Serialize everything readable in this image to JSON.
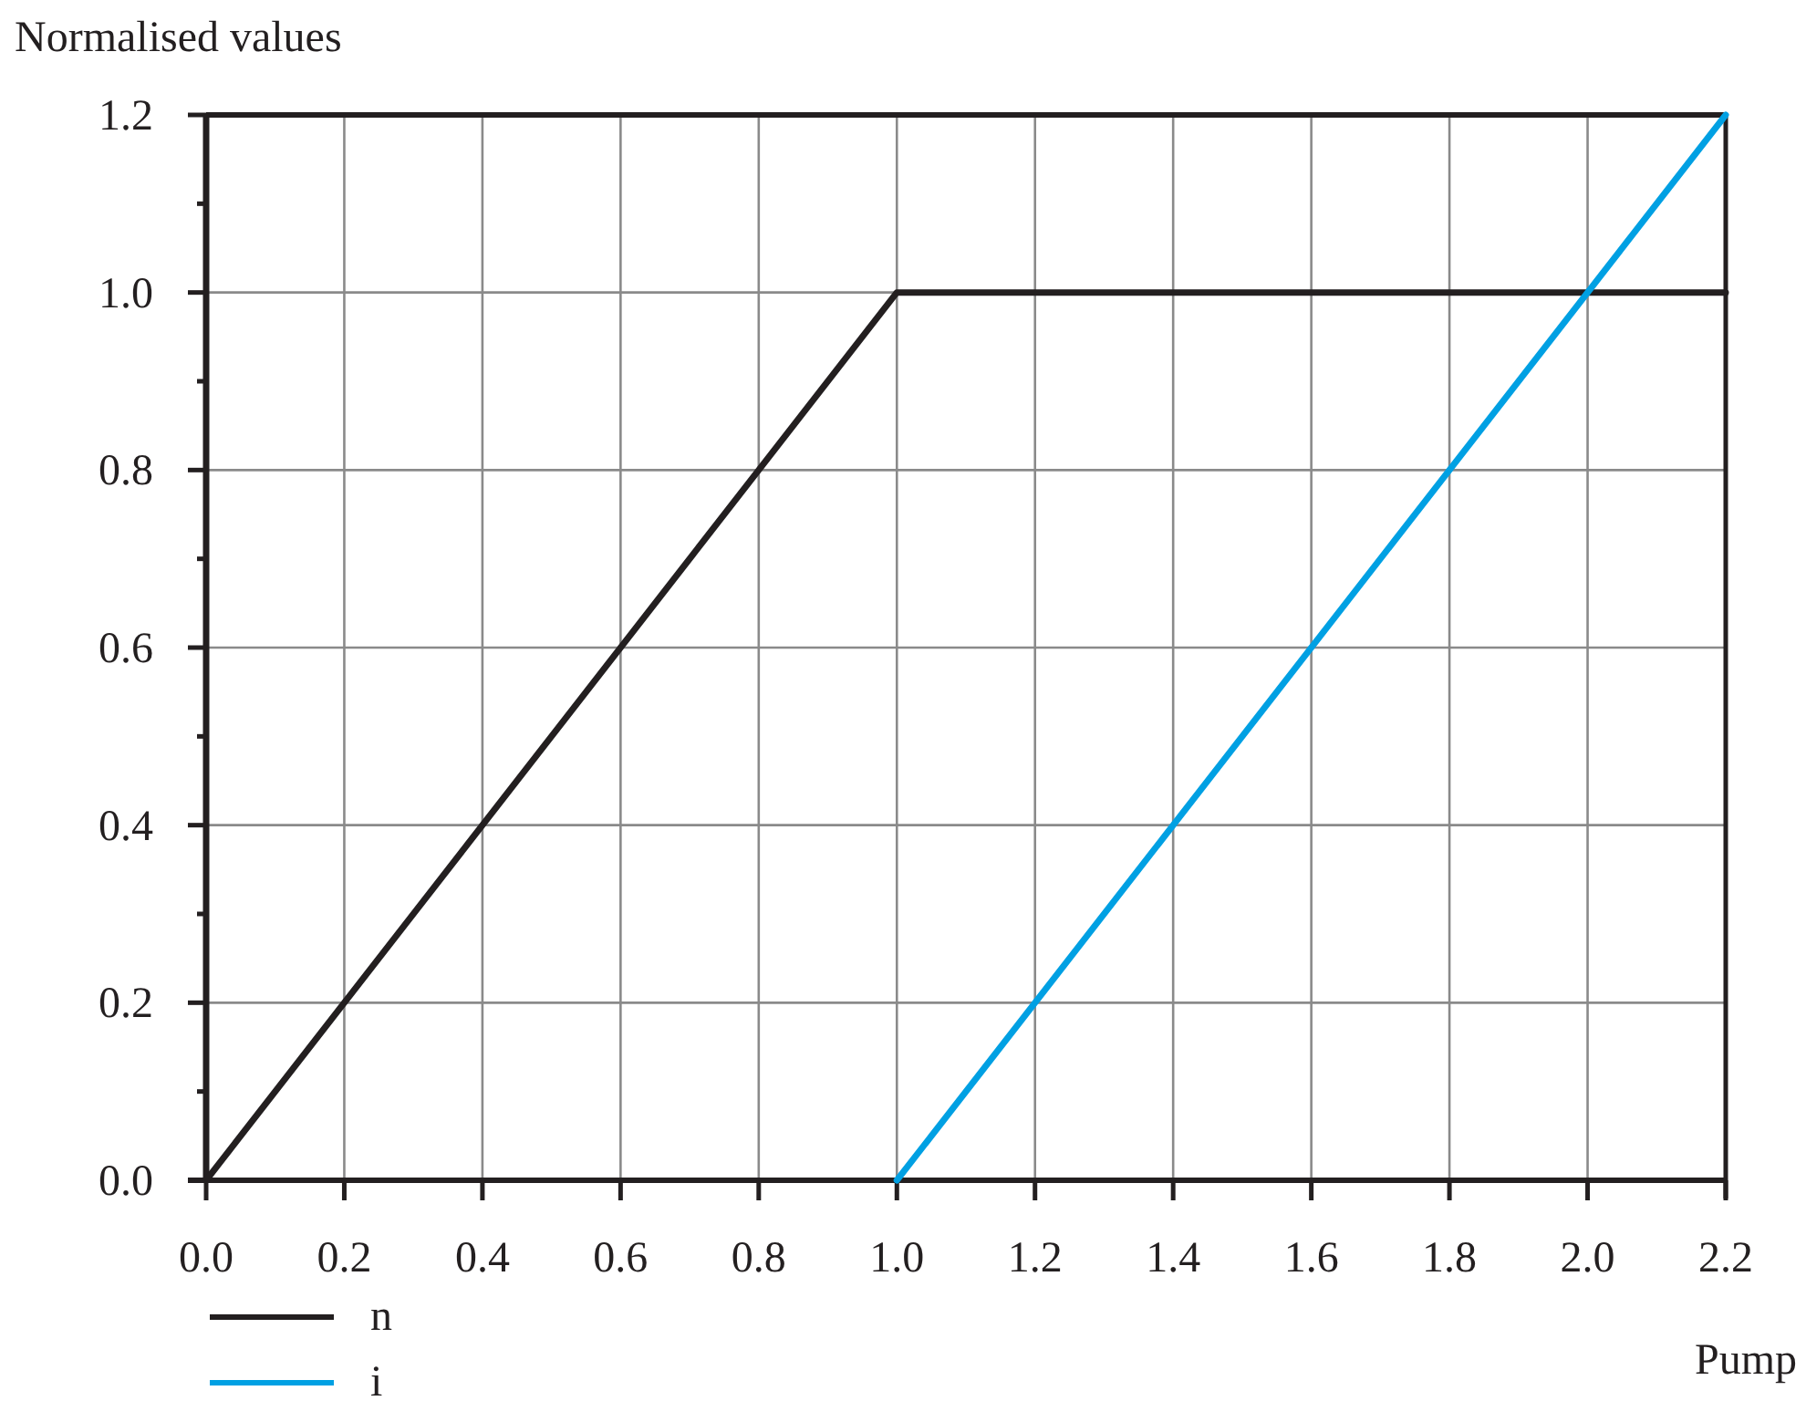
{
  "chart_data": {
    "type": "line",
    "xlabel": "Pump",
    "ylabel": "Normalised values",
    "xlim": [
      0,
      2.2
    ],
    "ylim": [
      0,
      1.2
    ],
    "xticks": [
      {
        "value": 0,
        "label": "0.0"
      },
      {
        "value": 0.2,
        "label": "0.2"
      },
      {
        "value": 0.4,
        "label": "0.4"
      },
      {
        "value": 0.6,
        "label": "0.6"
      },
      {
        "value": 0.8,
        "label": "0.8"
      },
      {
        "value": 1.0,
        "label": "1.0"
      },
      {
        "value": 1.2,
        "label": "1.2"
      },
      {
        "value": 1.4,
        "label": "1.4"
      },
      {
        "value": 1.6,
        "label": "1.6"
      },
      {
        "value": 1.8,
        "label": "1.8"
      },
      {
        "value": 2.0,
        "label": "2.0"
      },
      {
        "value": 2.2,
        "label": "2.2"
      }
    ],
    "yticks": [
      {
        "value": 0,
        "label": "0.0"
      },
      {
        "value": 0.1,
        "label": null
      },
      {
        "value": 0.2,
        "label": "0.2"
      },
      {
        "value": 0.3,
        "label": null
      },
      {
        "value": 0.4,
        "label": "0.4"
      },
      {
        "value": 0.5,
        "label": null
      },
      {
        "value": 0.6,
        "label": "0.6"
      },
      {
        "value": 0.7,
        "label": null
      },
      {
        "value": 0.8,
        "label": "0.8"
      },
      {
        "value": 0.9,
        "label": null
      },
      {
        "value": 1.0,
        "label": "1.0"
      },
      {
        "value": 1.1,
        "label": null
      },
      {
        "value": 1.2,
        "label": "1.2"
      }
    ],
    "grid": true,
    "legend": "bottom left",
    "series": [
      {
        "name": "n",
        "color": "#231f20",
        "x": [
          0,
          1,
          2.2
        ],
        "values": [
          0,
          1,
          1
        ]
      },
      {
        "name": "i",
        "color": "#00a0e3",
        "x": [
          1,
          2.2
        ],
        "values": [
          0,
          1.2
        ]
      }
    ]
  }
}
